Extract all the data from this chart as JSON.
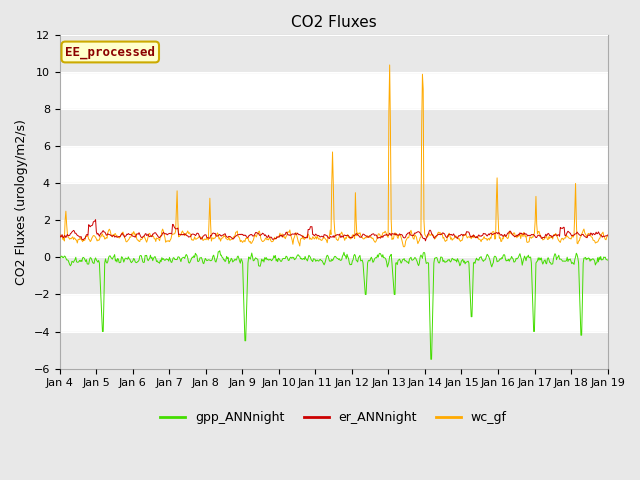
{
  "title": "CO2 Fluxes",
  "ylabel": "CO2 Fluxes (urology/m2/s)",
  "ylim": [
    -6,
    12
  ],
  "yticks": [
    -6,
    -4,
    -2,
    0,
    2,
    4,
    6,
    8,
    10,
    12
  ],
  "x_tick_labels": [
    "Jan 4",
    "Jan 5",
    "Jan 6",
    "Jan 7",
    "Jan 8",
    "Jan 9",
    "Jan 10",
    "Jan 11",
    "Jan 12",
    "Jan 13",
    "Jan 14",
    "Jan 15",
    "Jan 16",
    "Jan 17",
    "Jan 18",
    "Jan 19"
  ],
  "annotation_text": "EE_processed",
  "annotation_color": "#8B0000",
  "annotation_border": "#ccaa00",
  "annotation_bg": "#ffffcc",
  "line_colors": {
    "gpp": "#44dd00",
    "er": "#cc0000",
    "wc": "#ffaa00"
  },
  "legend_labels": [
    "gpp_ANNnight",
    "er_ANNnight",
    "wc_gf"
  ],
  "fig_bg": "#e8e8e8",
  "plot_bg": "#ffffff",
  "band_color": "#e8e8e8",
  "title_fontsize": 11,
  "axis_fontsize": 9,
  "tick_fontsize": 8,
  "legend_fontsize": 9
}
